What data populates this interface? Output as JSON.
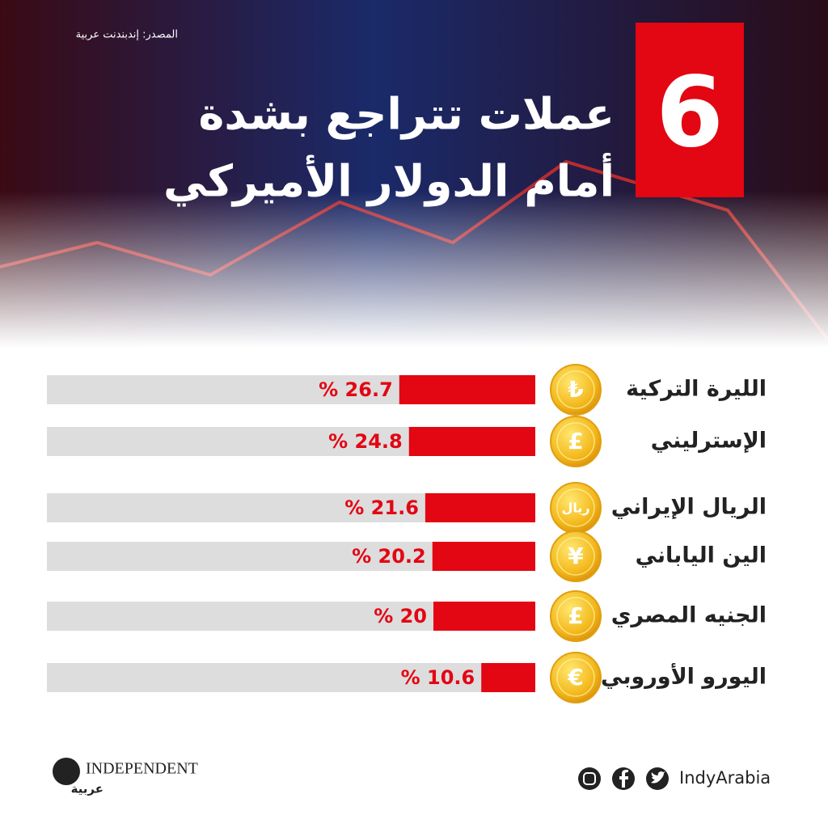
{
  "source": "المصدر: إندبندنت عربية",
  "chart_data": {
    "type": "bar",
    "orientation": "horizontal",
    "number": "6",
    "title": "عملات تتراجع بشدة",
    "subtitle": "أمام الدولار الأميركي",
    "categories": [
      "الليرة التركية",
      "الإسترليني",
      "الريال الإيراني",
      "الين الياباني",
      "الجنيه المصري",
      "اليورو الأوروبي"
    ],
    "symbols": [
      "₺",
      "£",
      "ريال",
      "¥",
      "£",
      "€"
    ],
    "values": [
      26.7,
      24.8,
      21.6,
      20.2,
      20,
      10.6
    ],
    "value_labels": [
      "% 26.7",
      "% 24.8",
      "% 21.6",
      "% 20.2",
      "% 20",
      "% 10.6"
    ],
    "color": "#e30613",
    "track_color": "#dddddd"
  },
  "footer": {
    "brand": "INDEPENDENT",
    "brand_sub": "عربية",
    "handle": "IndyArabia"
  }
}
